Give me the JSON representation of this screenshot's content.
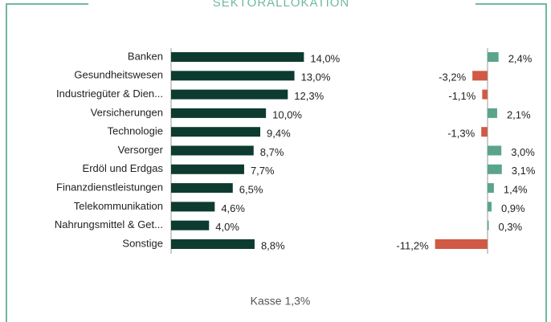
{
  "chart_data": [
    {
      "type": "hbar",
      "title": "SEKTORALLOKATION",
      "categories": [
        "Banken",
        "Gesundheitswesen",
        "Industriegüter & Dien...",
        "Versicherungen",
        "Technologie",
        "Versorger",
        "Erdöl und Erdgas",
        "Finanzdienstleistungen",
        "Telekommunikation",
        "Nahrungsmittel & Get...",
        "Sonstige"
      ],
      "values": [
        14.0,
        13.0,
        12.3,
        10.0,
        9.4,
        8.7,
        7.7,
        6.5,
        4.6,
        4.0,
        8.8
      ],
      "value_labels": [
        "14,0%",
        "13,0%",
        "12,3%",
        "10,0%",
        "9,4%",
        "8,7%",
        "7,7%",
        "6,5%",
        "4,6%",
        "4,0%",
        "8,8%"
      ],
      "color": "#0d3b30",
      "xlim": [
        0,
        16
      ],
      "annotation": "Kasse 1,3%"
    },
    {
      "type": "hbar",
      "values": [
        2.4,
        -3.2,
        -1.1,
        2.1,
        -1.3,
        3.0,
        3.1,
        1.4,
        0.9,
        0.3,
        -11.2
      ],
      "value_labels": [
        "2,4%",
        "-3,2%",
        "-1,1%",
        "2,1%",
        "-1,3%",
        "3,0%",
        "3,1%",
        "1,4%",
        "0,9%",
        "0,3%",
        "-11,2%"
      ],
      "colors": {
        "positive": "#5aa58a",
        "negative": "#d05a45"
      },
      "xlim": [
        -12,
        4
      ]
    }
  ]
}
